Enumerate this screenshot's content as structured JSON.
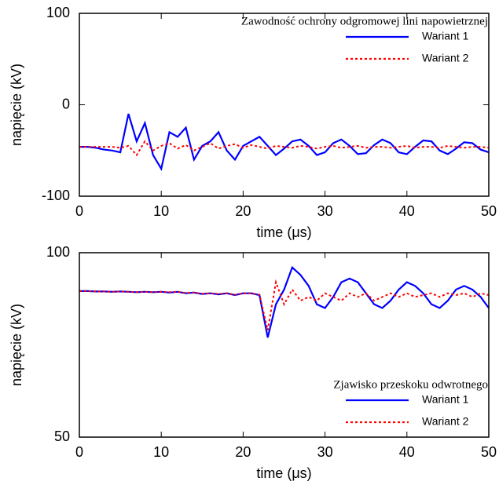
{
  "chart_data": [
    {
      "type": "line",
      "title": "Zawodność ochrony odgromowej lini napowietrznej",
      "legend": "upper right",
      "xlabel": "time (μs)",
      "ylabel": "napięcie (kV)",
      "xlim": [
        0,
        50
      ],
      "xticks": [
        0,
        10,
        20,
        30,
        40,
        50
      ],
      "ylim": [
        -100,
        100
      ],
      "yticks": [
        -100,
        0,
        100
      ],
      "x": [
        0,
        1,
        2,
        3,
        4,
        5,
        6,
        7,
        8,
        9,
        10,
        11,
        12,
        13,
        14,
        15,
        16,
        17,
        18,
        19,
        20,
        21,
        22,
        23,
        24,
        25,
        26,
        27,
        28,
        29,
        30,
        31,
        32,
        33,
        34,
        35,
        36,
        37,
        38,
        39,
        40,
        41,
        42,
        43,
        44,
        45,
        46,
        47,
        48,
        49,
        50
      ],
      "series": [
        {
          "name": "Wariant 1",
          "color": "#0000ff",
          "linestyle": "solid",
          "values": [
            -46,
            -46,
            -47,
            -49,
            -50,
            -52,
            -10,
            -40,
            -20,
            -55,
            -70,
            -30,
            -35,
            -25,
            -60,
            -45,
            -40,
            -30,
            -50,
            -60,
            -45,
            -40,
            -35,
            -45,
            -55,
            -48,
            -40,
            -38,
            -45,
            -55,
            -52,
            -42,
            -38,
            -45,
            -54,
            -53,
            -44,
            -38,
            -42,
            -52,
            -54,
            -46,
            -39,
            -40,
            -50,
            -54,
            -48,
            -41,
            -42,
            -49,
            -52
          ]
        },
        {
          "name": "Wariant 2",
          "color": "#ff0000",
          "linestyle": "dotted",
          "values": [
            -46,
            -46,
            -46,
            -46,
            -46,
            -47,
            -45,
            -55,
            -40,
            -50,
            -45,
            -42,
            -48,
            -44,
            -50,
            -46,
            -42,
            -48,
            -45,
            -43,
            -47,
            -44,
            -46,
            -48,
            -45,
            -46,
            -47,
            -45,
            -46,
            -48,
            -46,
            -45,
            -47,
            -46,
            -45,
            -47,
            -46,
            -46,
            -47,
            -46,
            -45,
            -47,
            -46,
            -46,
            -47,
            -45,
            -46,
            -47,
            -46,
            -46,
            -47
          ]
        }
      ]
    },
    {
      "type": "line",
      "title": "Zjawisko przeskoku odwrotnego",
      "legend": "lower right",
      "xlabel": "time (μs)",
      "ylabel": "napięcie (kV)",
      "xlim": [
        0,
        50
      ],
      "xticks": [
        0,
        10,
        20,
        30,
        40,
        50
      ],
      "ylim": [
        50,
        100
      ],
      "yticks": [
        50,
        100
      ],
      "x": [
        0,
        1,
        2,
        3,
        4,
        5,
        6,
        7,
        8,
        9,
        10,
        11,
        12,
        13,
        14,
        15,
        16,
        17,
        18,
        19,
        20,
        21,
        22,
        23,
        24,
        25,
        26,
        27,
        28,
        29,
        30,
        31,
        32,
        33,
        34,
        35,
        36,
        37,
        38,
        39,
        40,
        41,
        42,
        43,
        44,
        45,
        46,
        47,
        48,
        49,
        50
      ],
      "series": [
        {
          "name": "Wariant 1",
          "color": "#0000ff",
          "linestyle": "solid",
          "values": [
            89.6,
            89.6,
            89.5,
            89.5,
            89.4,
            89.5,
            89.4,
            89.3,
            89.4,
            89.3,
            89.4,
            89.2,
            89.4,
            89.0,
            89.2,
            88.8,
            89.0,
            88.7,
            89.0,
            88.5,
            89.0,
            89.0,
            88.5,
            77,
            86,
            90,
            96,
            94,
            91,
            86,
            85,
            88,
            92,
            93,
            92,
            89,
            86,
            85,
            87,
            90,
            92,
            91,
            89,
            86,
            85,
            87,
            90,
            91,
            90,
            88,
            85
          ]
        },
        {
          "name": "Wariant 2",
          "color": "#ff0000",
          "linestyle": "dotted",
          "values": [
            89.6,
            89.6,
            89.5,
            89.5,
            89.4,
            89.5,
            89.4,
            89.3,
            89.4,
            89.3,
            89.4,
            89.3,
            89.4,
            89.1,
            89.2,
            88.9,
            89.0,
            88.8,
            89.0,
            88.6,
            89.0,
            89.0,
            88.6,
            79,
            92,
            86,
            90,
            87,
            88,
            87,
            89,
            88,
            87,
            89,
            88,
            89,
            87,
            88,
            89,
            88,
            89,
            88,
            88.5,
            89,
            88,
            89,
            88.5,
            89,
            88,
            89,
            88.5
          ]
        }
      ]
    }
  ]
}
